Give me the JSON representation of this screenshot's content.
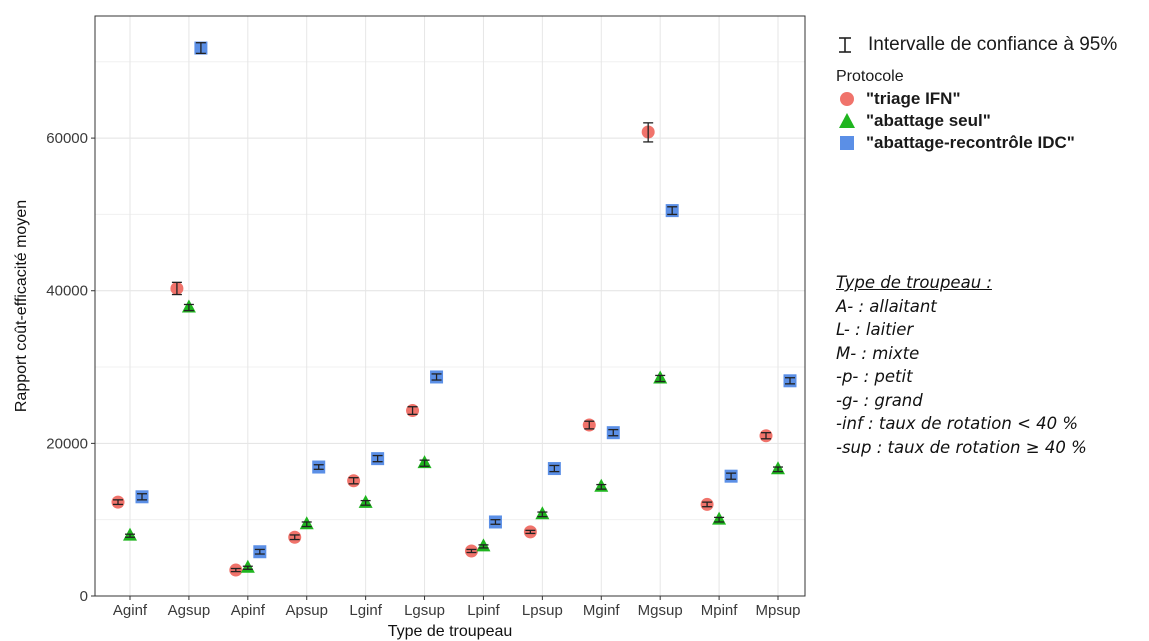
{
  "chart_data": {
    "type": "scatter",
    "xlabel": "Type de troupeau",
    "ylabel": "Rapport coût-efficacité moyen",
    "ylim": [
      0,
      72000
    ],
    "yticks": [
      0,
      20000,
      40000,
      60000
    ],
    "yticks_labels": [
      "0",
      "20000",
      "40000",
      "60000"
    ],
    "grid": true,
    "categories": [
      "Aginf",
      "Agsup",
      "Apinf",
      "Apsup",
      "Lginf",
      "Lgsup",
      "Lpinf",
      "Lpsup",
      "Mginf",
      "Mgsup",
      "Mpinf",
      "Mpsup"
    ],
    "series": [
      {
        "name": "\"triage IFN\"",
        "marker": "circle",
        "color": "#f0736b",
        "values": [
          12300,
          40300,
          3400,
          7700,
          15100,
          24300,
          5900,
          8400,
          22400,
          60800,
          12000,
          21000
        ],
        "ci_low": [
          12000,
          39500,
          3200,
          7400,
          14700,
          23800,
          5700,
          8200,
          21900,
          59500,
          11700,
          20600
        ],
        "ci_high": [
          12600,
          41100,
          3600,
          8000,
          15500,
          24800,
          6100,
          8600,
          22900,
          62000,
          12300,
          21400
        ]
      },
      {
        "name": "\"abattage seul\"",
        "marker": "triangle",
        "color": "#1fb51f",
        "values": [
          7900,
          37800,
          3700,
          9400,
          12200,
          17400,
          6500,
          10700,
          14300,
          28500,
          10000,
          16600
        ],
        "ci_low": [
          7700,
          37400,
          3500,
          9100,
          11900,
          17000,
          6300,
          10400,
          14000,
          28100,
          9700,
          16300
        ],
        "ci_high": [
          8100,
          38200,
          3900,
          9700,
          12500,
          17800,
          6700,
          11000,
          14600,
          28900,
          10300,
          16900
        ]
      },
      {
        "name": "\"abattage-recontrôle IDC\"",
        "marker": "square",
        "color": "#5b8fe6",
        "values": [
          13000,
          71800,
          5800,
          16900,
          18000,
          28700,
          9700,
          16700,
          21400,
          50500,
          15700,
          28200
        ],
        "ci_low": [
          12600,
          71100,
          5500,
          16600,
          17600,
          28300,
          9400,
          16300,
          21000,
          50000,
          15300,
          27800
        ],
        "ci_high": [
          13400,
          72500,
          6100,
          17200,
          18400,
          29100,
          10000,
          17100,
          21800,
          51000,
          16100,
          28600
        ]
      }
    ]
  },
  "legend": {
    "ci_label": "Intervalle de confiance à 95%",
    "protocol_title": "Protocole"
  },
  "notes": {
    "title": "Type de troupeau :",
    "lines": [
      "A- : allaitant",
      "L- : laitier",
      "M- : mixte",
      "-p- : petit",
      "-g- : grand",
      "-inf : taux de rotation < 40 %",
      "-sup : taux de rotation ≥ 40 %"
    ]
  }
}
